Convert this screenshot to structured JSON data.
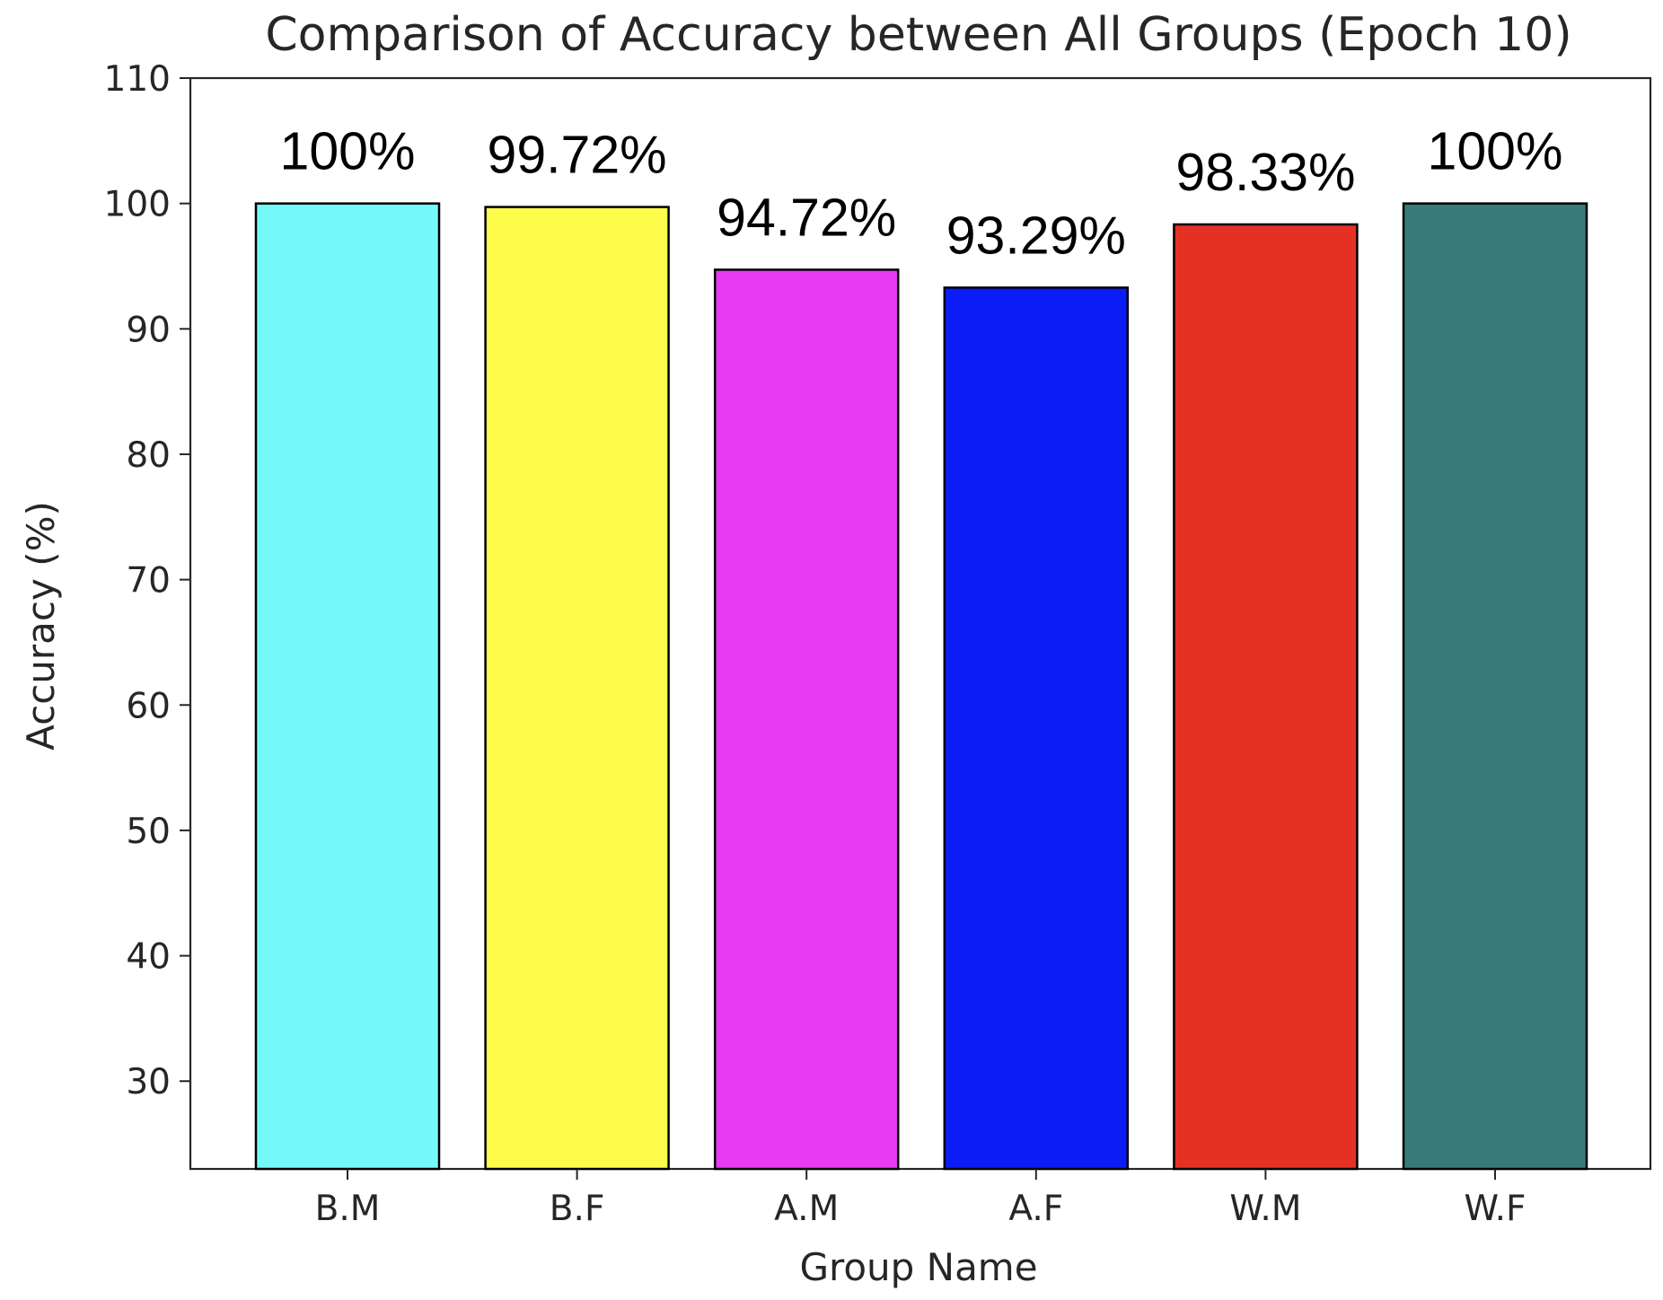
{
  "chart_data": {
    "type": "bar",
    "title": "Comparison of Accuracy between All Groups (Epoch 10)",
    "xlabel": "Group Name",
    "ylabel": "Accuracy (%)",
    "ylim": [
      23,
      110
    ],
    "yticks": [
      30,
      40,
      50,
      60,
      70,
      80,
      90,
      100,
      110
    ],
    "grid": false,
    "categories": [
      "B.M",
      "B.F",
      "A.M",
      "A.F",
      "W.M",
      "W.F"
    ],
    "values": [
      100,
      99.72,
      94.72,
      93.29,
      98.33,
      100
    ],
    "data_labels": [
      "100%",
      "99.72%",
      "94.72%",
      "93.29%",
      "98.33%",
      "100%"
    ],
    "colors": [
      "#74f9f9",
      "#fdfc4b",
      "#e83af2",
      "#0b1cf6",
      "#e43124",
      "#377b79"
    ],
    "edge_color": "#000000"
  }
}
